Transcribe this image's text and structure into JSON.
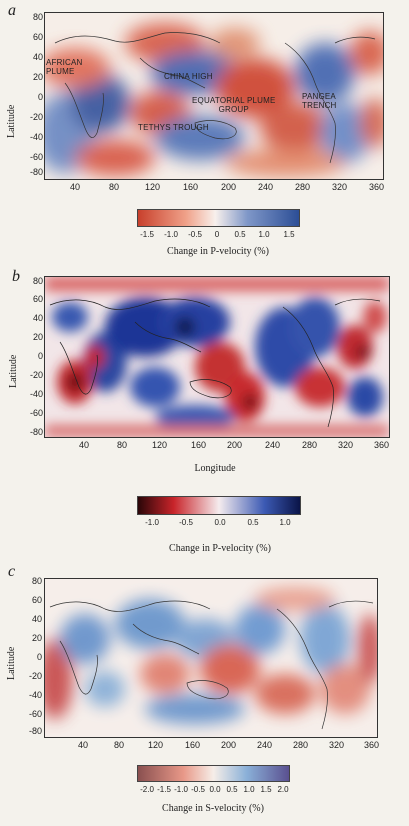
{
  "panels": [
    {
      "letter": "a",
      "ylabel": "Latitude",
      "xlabel": "",
      "yticks": [
        "80",
        "60",
        "40",
        "20",
        "0",
        "-20",
        "-40",
        "-60",
        "-80"
      ],
      "xticks": [
        "40",
        "80",
        "120",
        "160",
        "200",
        "240",
        "280",
        "320",
        "360"
      ],
      "annotations": [
        {
          "text": "AFRICAN\nPLUME"
        },
        {
          "text": "CHINA HIGH"
        },
        {
          "text": "EQUATORIAL PLUME\nGROUP"
        },
        {
          "text": "PANGEA\nTRENCH"
        },
        {
          "text": "TETHYS TROUGH"
        }
      ],
      "colorbar": {
        "ticks": [
          "-1.5",
          "-1.0",
          "-0.5",
          "0",
          "0.5",
          "1.0",
          "1.5"
        ],
        "title": "Change in P-velocity (%)",
        "colors": [
          "#c8402c",
          "#f0a28a",
          "#f8f0ec",
          "#7f97c8",
          "#2c4e96"
        ]
      }
    },
    {
      "letter": "b",
      "ylabel": "Latitude",
      "xlabel": "Longitude",
      "yticks": [
        "80",
        "60",
        "40",
        "20",
        "0",
        "-20",
        "-40",
        "-60",
        "-80"
      ],
      "xticks": [
        "40",
        "80",
        "120",
        "160",
        "200",
        "240",
        "280",
        "320",
        "360"
      ],
      "annotations": [],
      "colorbar": {
        "ticks": [
          "-1.0",
          "-0.5",
          "0.0",
          "0.5",
          "1.0"
        ],
        "title": "Change in P-velocity (%)",
        "colors": [
          "#2a0608",
          "#c8242a",
          "#f5ecee",
          "#3c5ab4",
          "#0a1448"
        ]
      }
    },
    {
      "letter": "c",
      "ylabel": "Latitude",
      "xlabel": "",
      "yticks": [
        "80",
        "60",
        "40",
        "20",
        "0",
        "-20",
        "-40",
        "-60",
        "-80"
      ],
      "xticks": [
        "40",
        "80",
        "120",
        "160",
        "200",
        "240",
        "280",
        "320",
        "360"
      ],
      "annotations": [],
      "colorbar": {
        "ticks": [
          "-2.0",
          "-1.5",
          "-1.0",
          "-0.5",
          "0.0",
          "0.5",
          "1.0",
          "1.5",
          "2.0"
        ],
        "title": "Change in S-velocity (%)",
        "colors": [
          "#8a5050",
          "#e89888",
          "#f6eee8",
          "#8ab0d8",
          "#5a5090"
        ]
      }
    }
  ]
}
